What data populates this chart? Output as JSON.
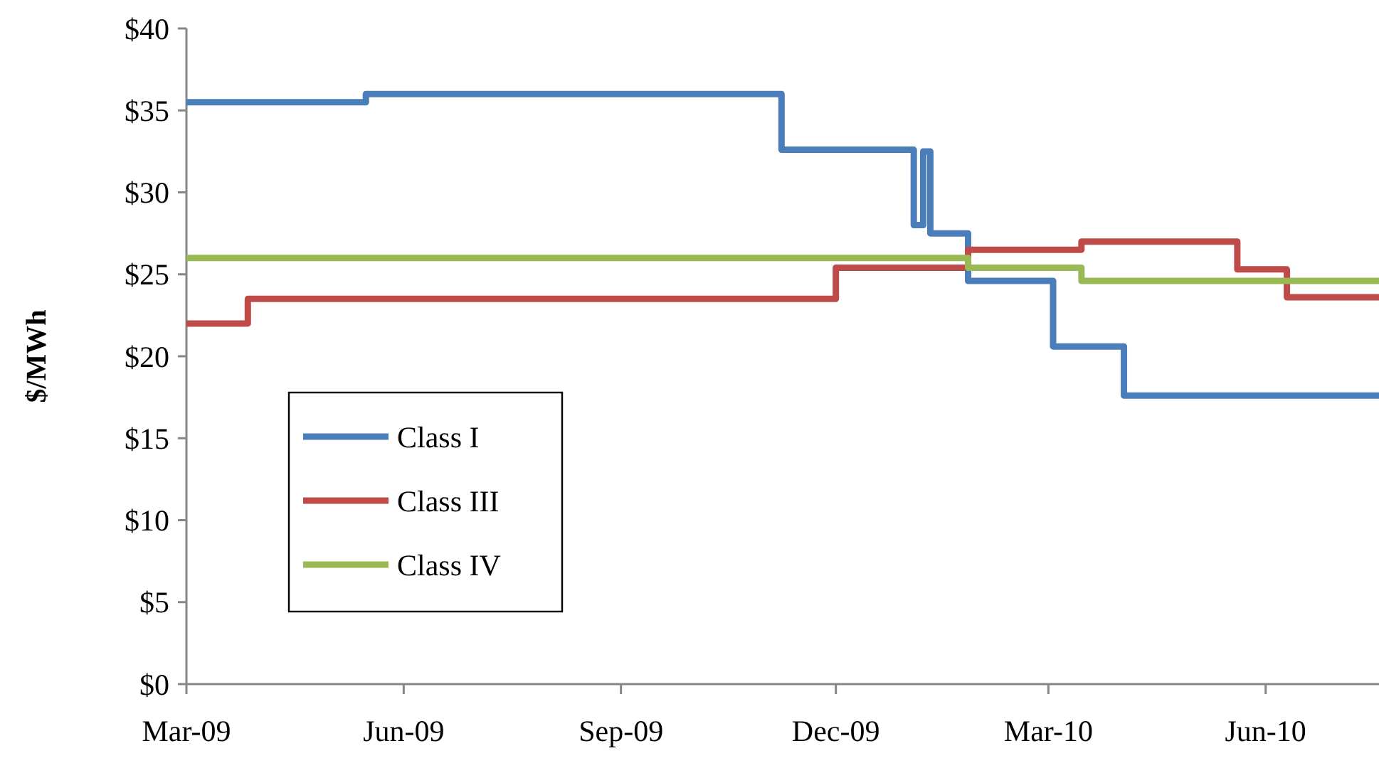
{
  "chart_data": {
    "type": "step",
    "ylabel": "$/MWh",
    "xlim": [
      "2009-03-01",
      "2010-07-19"
    ],
    "ylim": [
      0,
      40
    ],
    "yticks": [
      {
        "value": 0,
        "label": "$0"
      },
      {
        "value": 5,
        "label": "$5"
      },
      {
        "value": 10,
        "label": "$10"
      },
      {
        "value": 15,
        "label": "$15"
      },
      {
        "value": 20,
        "label": "$20"
      },
      {
        "value": 25,
        "label": "$25"
      },
      {
        "value": 30,
        "label": "$30"
      },
      {
        "value": 35,
        "label": "$35"
      },
      {
        "value": 40,
        "label": "$40"
      }
    ],
    "xticks": [
      {
        "value": "2009-03-01",
        "label": "Mar-09"
      },
      {
        "value": "2009-06-01",
        "label": "Jun-09"
      },
      {
        "value": "2009-09-01",
        "label": "Sep-09"
      },
      {
        "value": "2009-12-01",
        "label": "Dec-09"
      },
      {
        "value": "2010-03-01",
        "label": "Mar-10"
      },
      {
        "value": "2010-06-01",
        "label": "Jun-10"
      }
    ],
    "grid": false,
    "legend": "bottom left",
    "line_style": "solid",
    "marker": "none",
    "series": [
      {
        "name": "Class I",
        "color": "#4a7ebb",
        "x": [
          "2009-03-01",
          "2009-05-16",
          "2009-11-08",
          "2010-01-03",
          "2010-01-07",
          "2010-01-10",
          "2010-01-26",
          "2010-03-03",
          "2010-04-02",
          "2010-07-19"
        ],
        "values": [
          35.5,
          36,
          32.6,
          28,
          32.5,
          27.5,
          24.6,
          20.6,
          17.6,
          17.6
        ]
      },
      {
        "name": "Class III",
        "color": "#be4b48",
        "x": [
          "2009-03-01",
          "2009-03-27",
          "2009-12-01",
          "2010-01-26",
          "2010-03-15",
          "2010-05-20",
          "2010-06-10",
          "2010-07-19"
        ],
        "values": [
          22,
          23.5,
          25.4,
          26.5,
          27,
          25.3,
          23.6,
          23.6
        ]
      },
      {
        "name": "Class IV",
        "color": "#98b954",
        "x": [
          "2009-03-01",
          "2010-01-26",
          "2010-03-15",
          "2010-07-19"
        ],
        "values": [
          26,
          25.4,
          24.6,
          24.6
        ]
      }
    ]
  }
}
